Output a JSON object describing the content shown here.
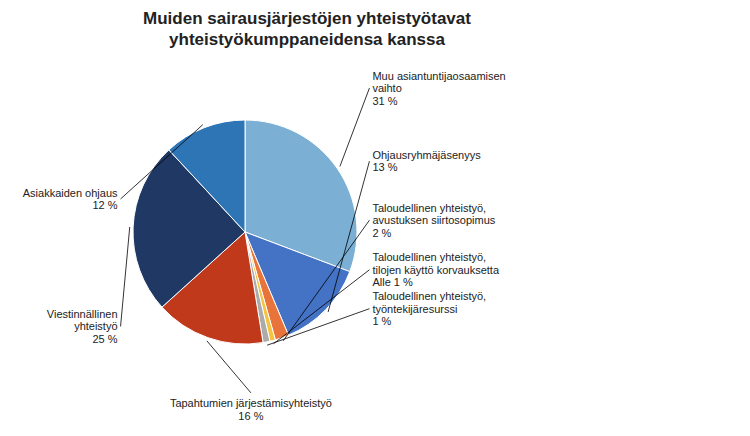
{
  "chart_data": {
    "type": "pie",
    "title": "Muiden sairausjärjestöjen yhteistyötavat\nyhteistyökumppaneidensa kanssa",
    "categories": [
      "Muu asiantuntijaosaamisen\nvaihto",
      "Ohjausryhmäjäsenyys",
      "Taloudellinen yhteistyö,\navustuksen siirtosopimus",
      "Taloudellinen yhteistyö,\ntilojen käyttö korvauksetta",
      "Taloudellinen yhteistyö,\ntyöntekijäresurssi",
      "Tapahtumien järjestämisyhteistyö",
      "Viestinnällinen\nyhteistyö",
      "Asiakkaiden ohjaus"
    ],
    "values": [
      31,
      13,
      2,
      0.8,
      1,
      16,
      25,
      12
    ],
    "value_labels": [
      "31 %",
      "13 %",
      "2 %",
      "Alle 1 %",
      "1 %",
      "16 %",
      "25 %",
      "12 %"
    ],
    "colors": [
      "#7BAFD4",
      "#4472C4",
      "#E8743B",
      "#F5C242",
      "#ABABAB",
      "#C0391A",
      "#1F3864",
      "#2E75B6"
    ],
    "data_labels": true
  }
}
